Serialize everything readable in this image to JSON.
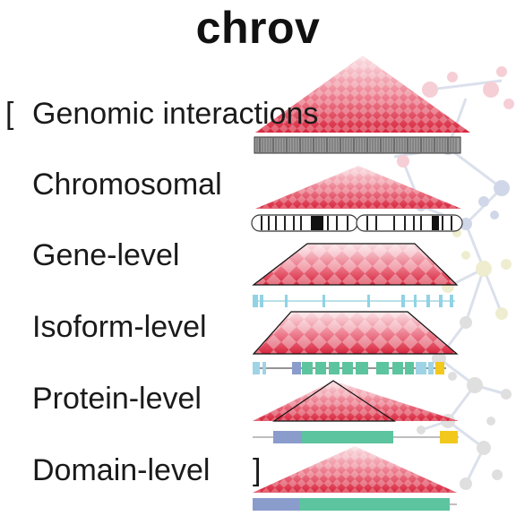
{
  "title": "chrov",
  "bracket_open": "[",
  "bracket_close": "]",
  "levels": [
    {
      "label": "Genomic interactions"
    },
    {
      "label": "Chromosomal"
    },
    {
      "label": "Gene-level"
    },
    {
      "label": "Isoform-level"
    },
    {
      "label": "Protein-level"
    },
    {
      "label": "Domain-level"
    }
  ],
  "colors": {
    "heatmap": "#d7263d",
    "network_red": "#f0a7b3",
    "network_blue": "#aab8d6",
    "network_yellow": "#e3dfa8",
    "network_gray": "#c6c6c6",
    "exon": "#5cc49f",
    "utr": "#9fd3e6",
    "domain_blue": "#8a9ccc",
    "domain_yellow": "#f2c81c"
  }
}
